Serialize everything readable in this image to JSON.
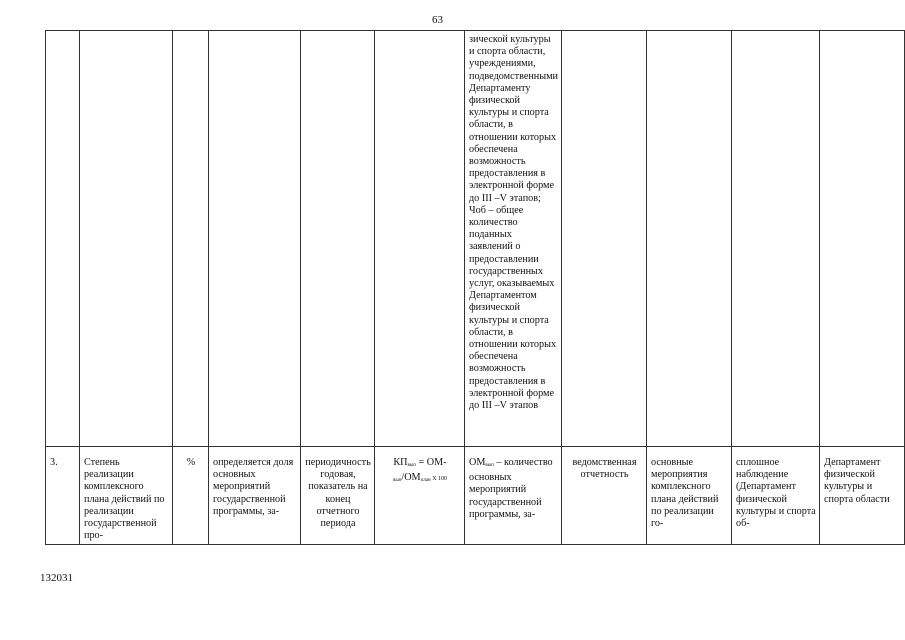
{
  "page_number": "63",
  "footer_code": "132031",
  "continued_row": {
    "description_text": "зической культуры и спорта области, учреждениями, подведомственными Департаменту физической культуры и спорта области, в отношении которых обеспечена возможность предоставления в электронной форме до III –V этапов;",
    "description_text_2": "Чоб – общее количество поданных заявлений о предоставлении государственных услуг, оказываемых Департаментом физической культуры и спорта области, в отношении которых обеспечена возможность предоставления в электронной форме до III –V этапов"
  },
  "row3": {
    "number": "3.",
    "name": "Степень реализации комплексного плана действий по реализации государственной про-",
    "unit": "%",
    "definition": "определяется доля основных мероприятий государственной программы, за-",
    "periodicity": "периодичность годовая, показатель на конец отчетного периода",
    "formula_main": "КП",
    "formula_sub1": "вып",
    "formula_mid": " = ОМ-",
    "formula_sub2": "вып",
    "formula_mid2": "/ОМ",
    "formula_sub3": "план",
    "formula_end": " Х 100",
    "formula_desc_om": "ОМ",
    "formula_desc_sub": "вып",
    "formula_desc": " – количество основных мероприятий государственной программы, за-",
    "source": "ведомственная отчетность",
    "object": "основные мероприятия комплексного плана действий по реализации го-",
    "method": "сплошное наблюдение (Департамент физической культуры и спорта об-",
    "responsible": "Департамент физической культуры и спорта области"
  }
}
